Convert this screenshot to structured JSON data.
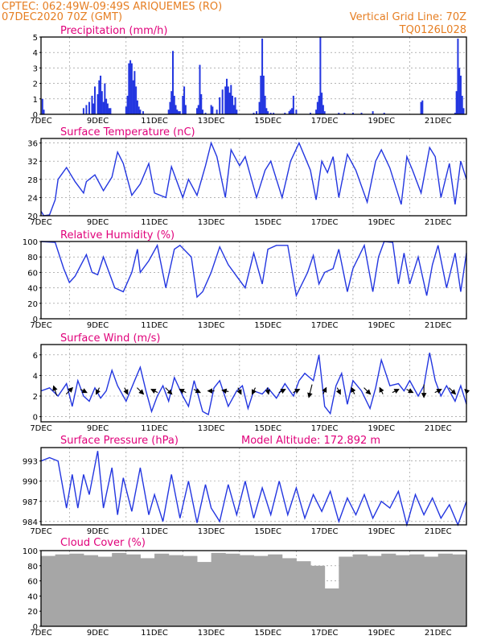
{
  "header": {
    "line1": "CPTEC:   062:49W-09:49S   ARIQUEMES (RO)",
    "line2": "07DEC2020 70Z (GMT)",
    "grid_note": "Vertical Grid Line: 70Z",
    "code": "TQ0126L028"
  },
  "colors": {
    "header": "#e67e22",
    "title": "#e0007a",
    "line": "#2336e0",
    "bar": "#2336e0",
    "cloud": "#a6a6a6"
  },
  "xaxis": {
    "labels": [
      "7DEC",
      "9DEC",
      "11DEC",
      "13DEC",
      "15DEC",
      "17DEC",
      "19DEC",
      "21DEC"
    ],
    "range_days": [
      7,
      22
    ]
  },
  "chart_data": [
    {
      "type": "bar",
      "title": "Precipitation (mm/h)",
      "ylim": [
        0,
        5
      ],
      "yticks": [
        0,
        1,
        2,
        3,
        4,
        5
      ],
      "series": [
        {
          "x": [
            7.05,
            7.1,
            8.5,
            8.6,
            8.7,
            8.8,
            8.85,
            8.9,
            9.0,
            9.05,
            9.1,
            9.1,
            9.15,
            9.2,
            9.25,
            9.3,
            9.35,
            9.4,
            9.4,
            9.45,
            10.0,
            10.05,
            10.1,
            10.15,
            10.2,
            10.25,
            10.3,
            10.35,
            10.4,
            10.45,
            10.5,
            10.6,
            11.5,
            11.55,
            11.6,
            11.65,
            11.7,
            11.75,
            11.8,
            11.85,
            11.9,
            12.0,
            12.05,
            12.1,
            12.5,
            12.55,
            12.6,
            12.65,
            12.7,
            12.8,
            13.0,
            13.05,
            13.2,
            13.3,
            13.4,
            13.5,
            13.55,
            13.6,
            13.65,
            13.7,
            13.75,
            13.8,
            13.85,
            13.9,
            14.5,
            14.6,
            14.7,
            14.75,
            14.8,
            14.85,
            14.9,
            14.95,
            15.0,
            15.1,
            15.2,
            15.6,
            15.75,
            15.8,
            15.85,
            15.9,
            16.0,
            16.5,
            16.7,
            16.75,
            16.8,
            16.85,
            16.9,
            16.95,
            17.0,
            17.5,
            17.7,
            18.0,
            18.3,
            18.7,
            19.1,
            20.4,
            20.45,
            21.6,
            21.65,
            21.7,
            21.75,
            21.8,
            21.85,
            21.9
          ],
          "values": [
            1.0,
            0.3,
            0.4,
            0.6,
            0.8,
            1.2,
            0.7,
            1.8,
            1.3,
            2.2,
            0.9,
            2.5,
            1.5,
            0.8,
            2.0,
            1.0,
            0.7,
            0.3,
            0.4,
            0.4,
            0.5,
            1.2,
            3.3,
            3.5,
            3.3,
            2.2,
            2.8,
            1.8,
            0.9,
            0.5,
            0.3,
            0.2,
            0.3,
            0.8,
            1.5,
            4.1,
            1.2,
            0.6,
            0.3,
            0.2,
            0.2,
            1.2,
            1.8,
            0.6,
            0.4,
            0.6,
            3.2,
            1.3,
            0.3,
            0.1,
            0.6,
            0.5,
            0.3,
            1.1,
            1.6,
            1.8,
            2.3,
            1.8,
            1.4,
            1.9,
            1.2,
            0.6,
            1.1,
            0.3,
            0.1,
            0.2,
            0.8,
            2.5,
            4.9,
            2.5,
            1.2,
            0.4,
            0.2,
            0.1,
            0.1,
            0.1,
            0.2,
            0.3,
            0.4,
            1.2,
            0.3,
            0.1,
            0.3,
            0.8,
            1.2,
            5.0,
            1.4,
            0.6,
            0.2,
            0.1,
            0.1,
            0.1,
            0.1,
            0.2,
            0.1,
            0.8,
            0.9,
            0.1,
            1.5,
            4.9,
            3.0,
            2.5,
            1.2,
            0.4
          ]
        }
      ]
    },
    {
      "type": "line",
      "title": "Surface Temperature (nC)",
      "ylim": [
        20,
        37
      ],
      "yticks": [
        20,
        24,
        28,
        32,
        36
      ],
      "series": [
        {
          "x": [
            7.0,
            7.1,
            7.3,
            7.5,
            7.6,
            7.9,
            8.2,
            8.5,
            8.6,
            8.9,
            9.2,
            9.5,
            9.7,
            9.9,
            10.2,
            10.5,
            10.8,
            11.0,
            11.4,
            11.6,
            12.0,
            12.2,
            12.5,
            12.8,
            13.0,
            13.2,
            13.5,
            13.7,
            14.0,
            14.2,
            14.6,
            14.9,
            15.1,
            15.5,
            15.8,
            16.1,
            16.5,
            16.7,
            16.9,
            17.1,
            17.3,
            17.5,
            17.8,
            18.1,
            18.5,
            18.8,
            19.0,
            19.3,
            19.7,
            19.9,
            20.1,
            20.4,
            20.7,
            20.9,
            21.1,
            21.4,
            21.6,
            21.8,
            22.0
          ],
          "values": [
            21.0,
            20.0,
            20.2,
            23.5,
            28.0,
            30.6,
            27.5,
            25.0,
            27.5,
            29.0,
            25.5,
            28.5,
            34.0,
            31.5,
            24.5,
            27.0,
            31.5,
            25.0,
            24.0,
            30.8,
            24.0,
            28.0,
            24.5,
            31.0,
            36.0,
            33.0,
            24.0,
            34.5,
            31.0,
            33.0,
            24.0,
            30.0,
            32.0,
            24.0,
            32.0,
            36.0,
            30.0,
            23.5,
            32.0,
            29.5,
            33.0,
            24.0,
            33.5,
            30.0,
            23.0,
            32.0,
            34.5,
            30.5,
            22.5,
            33.0,
            30.0,
            25.0,
            35.0,
            33.0,
            24.0,
            31.5,
            22.5,
            32.0,
            28.0
          ]
        }
      ]
    },
    {
      "type": "line",
      "title": "Relative Humidity (%)",
      "ylim": [
        0,
        100
      ],
      "yticks": [
        0,
        20,
        40,
        60,
        80,
        100
      ],
      "series": [
        {
          "x": [
            7.0,
            7.5,
            7.8,
            8.0,
            8.2,
            8.6,
            8.8,
            9.0,
            9.2,
            9.6,
            9.9,
            10.2,
            10.4,
            10.5,
            10.8,
            11.1,
            11.4,
            11.7,
            11.9,
            12.3,
            12.5,
            12.7,
            13.0,
            13.3,
            13.6,
            13.9,
            14.2,
            14.5,
            14.8,
            15.0,
            15.3,
            15.7,
            16.0,
            16.4,
            16.6,
            16.8,
            17.0,
            17.3,
            17.5,
            17.8,
            18.0,
            18.4,
            18.7,
            18.9,
            19.1,
            19.4,
            19.6,
            19.8,
            20.0,
            20.3,
            20.6,
            20.8,
            21.0,
            21.3,
            21.6,
            21.8,
            22.0
          ],
          "values": [
            100.0,
            99.0,
            65.0,
            47.0,
            55.0,
            83.0,
            60.0,
            57.0,
            80.0,
            40.0,
            35.0,
            60.0,
            90.0,
            60.0,
            75.0,
            95.0,
            40.0,
            90.0,
            95.0,
            80.0,
            28.0,
            35.0,
            60.0,
            93.0,
            70.0,
            55.0,
            40.0,
            85.0,
            45.0,
            90.0,
            95.0,
            95.0,
            30.0,
            60.0,
            82.0,
            45.0,
            60.0,
            65.0,
            90.0,
            35.0,
            65.0,
            95.0,
            35.0,
            80.0,
            100.0,
            99.0,
            45.0,
            85.0,
            45.0,
            80.0,
            30.0,
            70.0,
            95.0,
            40.0,
            85.0,
            35.0,
            85.0
          ]
        }
      ]
    },
    {
      "type": "line",
      "title": "Surface Wind (m/s)",
      "ylim": [
        -0.5,
        7
      ],
      "yticks": [
        0,
        2,
        4,
        6
      ],
      "series": [
        {
          "x": [
            7.0,
            7.3,
            7.6,
            7.9,
            8.1,
            8.3,
            8.5,
            8.7,
            8.9,
            9.1,
            9.3,
            9.5,
            9.7,
            10.0,
            10.3,
            10.5,
            10.7,
            10.9,
            11.1,
            11.3,
            11.5,
            11.7,
            12.0,
            12.2,
            12.4,
            12.7,
            12.9,
            13.1,
            13.3,
            13.6,
            13.9,
            14.1,
            14.3,
            14.5,
            14.8,
            15.0,
            15.3,
            15.6,
            15.9,
            16.1,
            16.3,
            16.6,
            16.8,
            17.0,
            17.2,
            17.4,
            17.6,
            17.8,
            18.0,
            18.3,
            18.6,
            18.8,
            19.0,
            19.3,
            19.6,
            19.8,
            20.0,
            20.3,
            20.5,
            20.7,
            20.9,
            21.1,
            21.3,
            21.6,
            21.8,
            22.0
          ],
          "values": [
            2.5,
            2.8,
            2.0,
            3.2,
            1.0,
            3.5,
            2.0,
            1.5,
            2.8,
            1.8,
            2.5,
            4.5,
            3.0,
            1.5,
            3.5,
            4.8,
            2.5,
            0.5,
            2.0,
            3.0,
            1.5,
            3.8,
            2.0,
            1.0,
            3.5,
            0.5,
            0.2,
            2.8,
            3.5,
            1.0,
            2.5,
            3.0,
            0.8,
            2.5,
            2.2,
            2.8,
            1.8,
            3.2,
            2.0,
            3.5,
            4.2,
            3.5,
            6.0,
            1.0,
            0.3,
            3.0,
            4.2,
            1.2,
            3.5,
            2.5,
            0.8,
            2.8,
            5.5,
            3.0,
            3.2,
            2.5,
            3.5,
            2.0,
            3.0,
            6.2,
            3.5,
            2.0,
            3.0,
            1.5,
            3.0,
            1.2
          ]
        }
      ],
      "arrows": {
        "x": [
          7.5,
          8.0,
          8.5,
          9.0,
          10.0,
          10.5,
          11.0,
          11.5,
          12.0,
          12.5,
          13.0,
          13.5,
          14.0,
          14.5,
          15.0,
          15.5,
          16.0,
          16.5,
          17.0,
          17.5,
          18.0,
          18.5,
          19.0,
          19.5,
          20.0,
          20.5,
          21.0,
          21.5,
          22.0
        ],
        "u": [
          -0.5,
          1.0,
          1.0,
          -0.5,
          0.5,
          1.0,
          -1.0,
          1.0,
          -1.0,
          1.0,
          -1.0,
          -1.0,
          0.5,
          -0.5,
          0.2,
          1.0,
          1.0,
          -0.5,
          0.5,
          0.5,
          -0.5,
          1.0,
          -0.5,
          1.0,
          1.0,
          0.0,
          1.0,
          1.0,
          -0.5
        ],
        "v": [
          1.5,
          1.0,
          -0.5,
          -1.0,
          -1.0,
          -1.0,
          0.5,
          -1.0,
          0.5,
          -0.5,
          0.0,
          0.2,
          -1.0,
          -1.0,
          -1.0,
          0.5,
          0.5,
          -2.0,
          1.0,
          -1.0,
          1.0,
          -1.0,
          1.0,
          0.5,
          -0.5,
          -2.0,
          0.5,
          -1.0,
          0.5
        ]
      }
    },
    {
      "type": "line",
      "title": "Surface Pressure (hPa)",
      "annotation": "Model Altitude: 172.892  m",
      "ylim": [
        983.5,
        995
      ],
      "yticks": [
        984,
        987,
        990,
        993
      ],
      "series": [
        {
          "x": [
            7.0,
            7.3,
            7.6,
            7.9,
            8.1,
            8.3,
            8.5,
            8.7,
            9.0,
            9.2,
            9.5,
            9.7,
            9.9,
            10.2,
            10.5,
            10.8,
            11.0,
            11.3,
            11.6,
            11.9,
            12.2,
            12.5,
            12.8,
            13.0,
            13.3,
            13.6,
            13.9,
            14.2,
            14.5,
            14.8,
            15.1,
            15.4,
            15.7,
            16.0,
            16.3,
            16.6,
            16.9,
            17.2,
            17.5,
            17.8,
            18.1,
            18.4,
            18.7,
            19.0,
            19.3,
            19.6,
            19.9,
            20.2,
            20.5,
            20.8,
            21.1,
            21.4,
            21.7,
            22.0
          ],
          "values": [
            993.0,
            993.5,
            993.0,
            986.0,
            991.0,
            986.0,
            991.0,
            988.0,
            994.5,
            986.0,
            992.0,
            985.0,
            990.5,
            985.5,
            992.0,
            985.0,
            988.0,
            984.0,
            991.0,
            984.5,
            990.0,
            983.8,
            989.5,
            986.0,
            984.0,
            989.5,
            985.0,
            990.0,
            984.5,
            989.0,
            985.0,
            990.0,
            985.0,
            989.0,
            984.5,
            988.0,
            985.5,
            988.5,
            984.0,
            987.5,
            985.0,
            988.0,
            984.5,
            987.0,
            986.0,
            988.5,
            983.5,
            988.0,
            985.0,
            987.5,
            984.5,
            986.5,
            983.5,
            987.0
          ]
        }
      ]
    },
    {
      "type": "bar",
      "title": "Cloud Cover (%)",
      "ylim": [
        0,
        100
      ],
      "yticks": [
        0,
        20,
        40,
        60,
        80,
        100
      ],
      "series": [
        {
          "x": [
            7.0,
            7.5,
            8.0,
            8.5,
            9.0,
            9.5,
            10.0,
            10.5,
            11.0,
            11.5,
            12.0,
            12.5,
            13.0,
            13.5,
            14.0,
            14.5,
            15.0,
            15.5,
            16.0,
            16.5,
            17.0,
            17.5,
            18.0,
            18.5,
            19.0,
            19.5,
            20.0,
            20.5,
            21.0,
            21.5
          ],
          "values": [
            93,
            95,
            96,
            94,
            92,
            97,
            95,
            90,
            96,
            94,
            93,
            85,
            97,
            96,
            94,
            93,
            95,
            90,
            86,
            80,
            50,
            92,
            95,
            93,
            96,
            94,
            95,
            92,
            96,
            95
          ]
        }
      ]
    }
  ]
}
